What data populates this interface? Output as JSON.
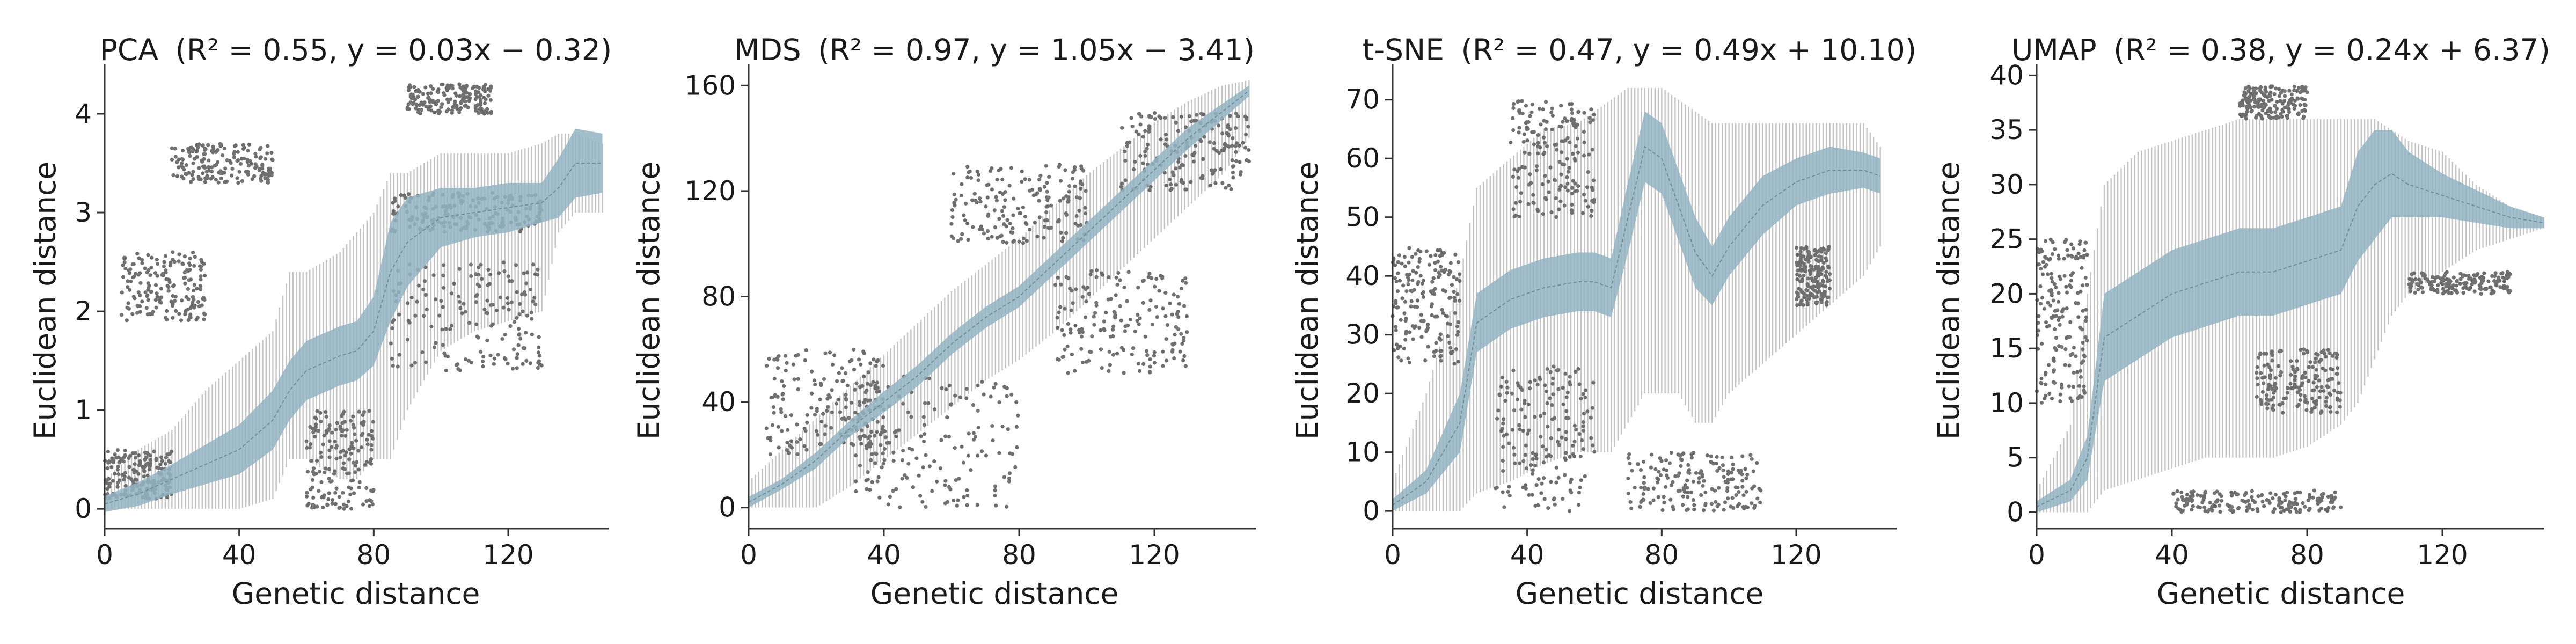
{
  "colors": {
    "outlier": "#6f6f6f",
    "whisker": "#c4c4c4",
    "iqr_band": "#93b4c2",
    "median": "#6f8c99",
    "axis": "#333333",
    "text": "#1a1a1a"
  },
  "chart_data": [
    {
      "type": "box",
      "title_method": "PCA",
      "title_stats": "(R² = 0.55, y = 0.03x − 0.32)",
      "r2": 0.55,
      "slope": 0.03,
      "intercept": -0.32,
      "xlabel": "Genetic distance",
      "ylabel": "Euclidean distance",
      "xlim": [
        0,
        150
      ],
      "ylim": [
        -0.2,
        4.5
      ],
      "xticks": [
        0,
        40,
        80,
        120
      ],
      "yticks": [
        0,
        1,
        2,
        3,
        4
      ],
      "grid": false,
      "median_curve": {
        "x": [
          0,
          10,
          20,
          30,
          40,
          50,
          55,
          60,
          70,
          75,
          80,
          85,
          90,
          100,
          110,
          120,
          130,
          135,
          140,
          148
        ],
        "y": [
          0.05,
          0.15,
          0.3,
          0.45,
          0.6,
          0.9,
          1.2,
          1.4,
          1.55,
          1.6,
          1.8,
          2.4,
          2.7,
          2.95,
          3.0,
          3.05,
          3.1,
          3.25,
          3.5,
          3.5
        ]
      },
      "iqr_half_width": [
        0.08,
        0.12,
        0.15,
        0.2,
        0.25,
        0.3,
        0.3,
        0.3,
        0.3,
        0.3,
        0.35,
        0.5,
        0.45,
        0.3,
        0.25,
        0.25,
        0.2,
        0.3,
        0.35,
        0.3
      ],
      "whisker_range": {
        "low": [
          0,
          0,
          0,
          0,
          0,
          0.1,
          0.5,
          0.5,
          0.3,
          0.3,
          0.5,
          0.5,
          1.0,
          1.6,
          1.8,
          1.9,
          2.0,
          2.8,
          3.0,
          3.0
        ],
        "high": [
          0.3,
          0.6,
          0.8,
          1.2,
          1.5,
          1.8,
          2.4,
          2.4,
          2.6,
          2.8,
          3.0,
          3.4,
          3.4,
          3.6,
          3.6,
          3.6,
          3.7,
          3.8,
          3.8,
          3.7
        ]
      },
      "outlier_bands": [
        {
          "x": [
            0,
            20
          ],
          "y": [
            0.1,
            0.6
          ]
        },
        {
          "x": [
            5,
            30
          ],
          "y": [
            1.9,
            2.6
          ]
        },
        {
          "x": [
            20,
            50
          ],
          "y": [
            3.3,
            3.7
          ]
        },
        {
          "x": [
            60,
            80
          ],
          "y": [
            0.0,
            1.0
          ]
        },
        {
          "x": [
            85,
            130
          ],
          "y": [
            1.4,
            2.5
          ]
        },
        {
          "x": [
            85,
            130
          ],
          "y": [
            2.8,
            3.2
          ]
        },
        {
          "x": [
            90,
            115
          ],
          "y": [
            4.0,
            4.3
          ]
        }
      ]
    },
    {
      "type": "box",
      "title_method": "MDS",
      "title_stats": "(R² = 0.97, y = 1.05x − 3.41)",
      "r2": 0.97,
      "slope": 1.05,
      "intercept": -3.41,
      "xlabel": "Genetic distance",
      "ylabel": "Euclidean distance",
      "xlim": [
        0,
        150
      ],
      "ylim": [
        -8,
        168
      ],
      "xticks": [
        0,
        40,
        80,
        120
      ],
      "yticks": [
        0,
        40,
        80,
        120,
        160
      ],
      "grid": false,
      "median_curve": {
        "x": [
          0,
          10,
          20,
          30,
          40,
          50,
          60,
          70,
          80,
          90,
          100,
          110,
          120,
          130,
          140,
          148
        ],
        "y": [
          2,
          9,
          18,
          30,
          40,
          50,
          62,
          72,
          80,
          92,
          104,
          116,
          128,
          140,
          150,
          158
        ]
      },
      "iqr_half_width": [
        2,
        2,
        3,
        3,
        4,
        4,
        4,
        4,
        4,
        4,
        4,
        4,
        4,
        4,
        3,
        2
      ],
      "whisker_range": {
        "low": [
          0,
          0,
          0,
          8,
          18,
          28,
          38,
          48,
          56,
          66,
          78,
          90,
          102,
          114,
          126,
          140
        ],
        "high": [
          10,
          22,
          34,
          46,
          58,
          70,
          82,
          92,
          102,
          114,
          126,
          136,
          146,
          154,
          160,
          162
        ]
      },
      "outlier_bands": [
        {
          "x": [
            5,
            40
          ],
          "y": [
            20,
            60
          ]
        },
        {
          "x": [
            30,
            80
          ],
          "y": [
            0,
            50
          ]
        },
        {
          "x": [
            60,
            100
          ],
          "y": [
            100,
            130
          ]
        },
        {
          "x": [
            90,
            130
          ],
          "y": [
            50,
            90
          ]
        },
        {
          "x": [
            110,
            148
          ],
          "y": [
            120,
            150
          ]
        }
      ]
    },
    {
      "type": "box",
      "title_method": "t-SNE",
      "title_stats": "(R² = 0.47, y = 0.49x + 10.10)",
      "r2": 0.47,
      "slope": 0.49,
      "intercept": 10.1,
      "xlabel": "Genetic distance",
      "ylabel": "Euclidean distance",
      "xlim": [
        0,
        150
      ],
      "ylim": [
        -3,
        76
      ],
      "xticks": [
        0,
        40,
        80,
        120
      ],
      "yticks": [
        0,
        10,
        20,
        30,
        40,
        50,
        60,
        70
      ],
      "grid": false,
      "median_curve": {
        "x": [
          0,
          10,
          20,
          25,
          35,
          45,
          55,
          60,
          65,
          70,
          75,
          80,
          85,
          90,
          95,
          100,
          110,
          120,
          130,
          140,
          145
        ],
        "y": [
          1,
          5,
          15,
          32,
          36,
          38,
          39,
          39,
          38,
          50,
          62,
          60,
          52,
          44,
          40,
          45,
          52,
          56,
          58,
          58,
          57
        ]
      },
      "iqr_half_width": [
        1,
        2,
        5,
        5,
        5,
        5,
        5,
        5,
        5,
        6,
        6,
        6,
        6,
        6,
        5,
        5,
        5,
        4,
        4,
        3,
        3
      ],
      "whisker_range": {
        "low": [
          0,
          0,
          0,
          3,
          5,
          8,
          10,
          10,
          10,
          15,
          20,
          20,
          20,
          15,
          15,
          20,
          25,
          30,
          35,
          40,
          45
        ],
        "high": [
          5,
          20,
          40,
          55,
          60,
          65,
          66,
          68,
          70,
          72,
          72,
          72,
          70,
          68,
          66,
          66,
          66,
          66,
          66,
          66,
          62
        ]
      },
      "outlier_bands": [
        {
          "x": [
            0,
            20
          ],
          "y": [
            25,
            45
          ]
        },
        {
          "x": [
            30,
            60
          ],
          "y": [
            0,
            25
          ]
        },
        {
          "x": [
            35,
            60
          ],
          "y": [
            50,
            70
          ]
        },
        {
          "x": [
            70,
            110
          ],
          "y": [
            0,
            10
          ]
        },
        {
          "x": [
            120,
            130
          ],
          "y": [
            35,
            45
          ]
        }
      ]
    },
    {
      "type": "box",
      "title_method": "UMAP",
      "title_stats": "(R² = 0.38, y = 0.24x + 6.37)",
      "r2": 0.38,
      "slope": 0.24,
      "intercept": 6.37,
      "xlabel": "Genetic distance",
      "ylabel": "Euclidean distance",
      "xlim": [
        0,
        150
      ],
      "ylim": [
        -1.5,
        41
      ],
      "xticks": [
        0,
        40,
        80,
        120
      ],
      "yticks": [
        0,
        5,
        10,
        15,
        20,
        25,
        30,
        35,
        40
      ],
      "grid": false,
      "median_curve": {
        "x": [
          0,
          10,
          15,
          20,
          30,
          40,
          50,
          60,
          70,
          80,
          90,
          95,
          100,
          105,
          110,
          120,
          130,
          140,
          150
        ],
        "y": [
          0.5,
          2,
          5,
          16,
          18,
          20,
          21,
          22,
          22,
          23,
          24,
          28,
          30,
          31,
          30,
          29,
          28,
          27,
          26.5
        ]
      },
      "iqr_half_width": [
        0.5,
        1,
        2,
        4,
        4,
        4,
        4,
        4,
        4,
        4,
        4,
        5,
        5,
        4,
        3,
        2,
        1.5,
        1,
        0.5
      ],
      "whisker_range": {
        "low": [
          0,
          0,
          0,
          2,
          3,
          4,
          5,
          5,
          5,
          6,
          8,
          10,
          14,
          18,
          20,
          22,
          24,
          25,
          26
        ],
        "high": [
          2,
          8,
          20,
          30,
          33,
          34,
          35,
          36,
          36,
          36,
          36,
          36,
          36,
          35,
          34,
          33,
          30,
          28,
          27
        ]
      },
      "outlier_bands": [
        {
          "x": [
            0,
            15
          ],
          "y": [
            10,
            25
          ]
        },
        {
          "x": [
            40,
            90
          ],
          "y": [
            0,
            2
          ]
        },
        {
          "x": [
            65,
            90
          ],
          "y": [
            9,
            15
          ]
        },
        {
          "x": [
            60,
            80
          ],
          "y": [
            36,
            39
          ]
        },
        {
          "x": [
            110,
            140
          ],
          "y": [
            20,
            22
          ]
        }
      ]
    }
  ]
}
